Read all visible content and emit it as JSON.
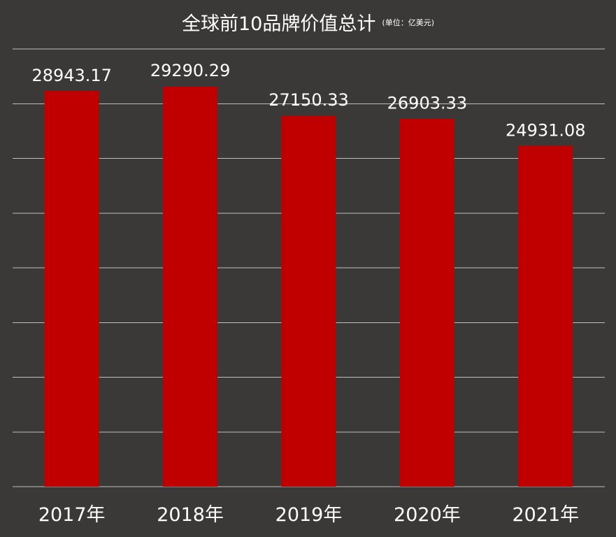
{
  "chart_data": {
    "type": "bar",
    "title": "全球前10品牌价值总计",
    "subtitle": "(单位：亿美元)",
    "categories": [
      "2017年",
      "2018年",
      "2019年",
      "2020年",
      "2021年"
    ],
    "values": [
      28943.17,
      29290.29,
      27150.33,
      26903.33,
      24931.08
    ],
    "data_labels": [
      "28943.17",
      "29290.29",
      "27150.33",
      "26903.33",
      "24931.08"
    ],
    "ylim": [
      0,
      32000
    ],
    "grid": true,
    "y_tick_labels_visible": false,
    "legend": "none",
    "bar_color": "#c00000",
    "background_color": "#3b3938",
    "text_color": "#ffffff",
    "grid_color": "#bfbfbf"
  }
}
